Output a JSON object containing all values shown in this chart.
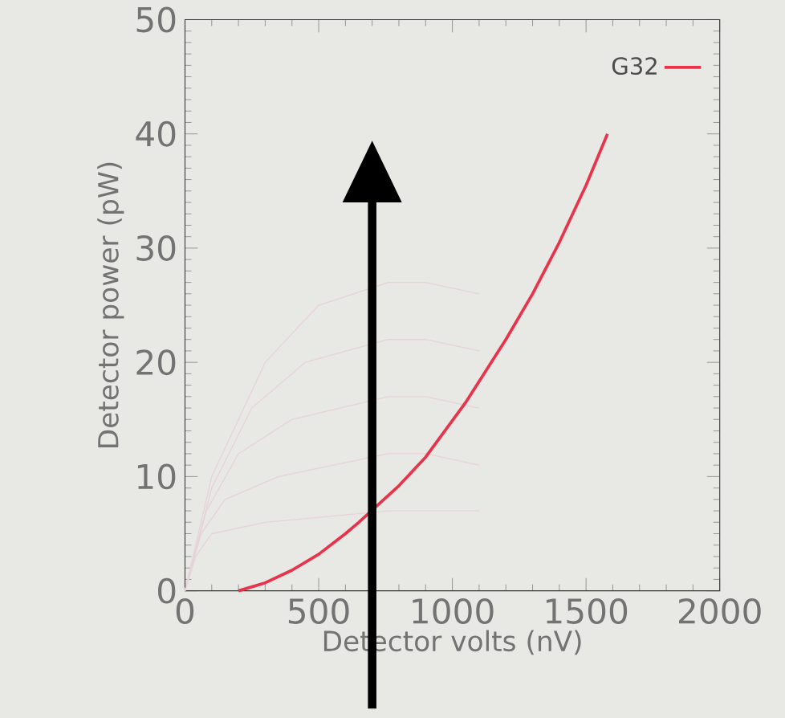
{
  "chart_data": {
    "type": "line",
    "xlabel": "Detector volts (nV)",
    "ylabel": "Detector power (pW)",
    "xlim": [
      0,
      2000
    ],
    "ylim": [
      0,
      50
    ],
    "xticks": [
      0,
      500,
      1000,
      1500,
      2000
    ],
    "yticks": [
      0,
      10,
      20,
      30,
      40,
      50
    ],
    "grid": false,
    "legend": "top right",
    "series": [
      {
        "color": "#e6d3da",
        "x": [
          0,
          100,
          300,
          500,
          760,
          900,
          1100
        ],
        "values": [
          0,
          10,
          20,
          25,
          27,
          27,
          26
        ]
      },
      {
        "color": "#e6d3da",
        "x": [
          0,
          100,
          250,
          450,
          760,
          900,
          1100
        ],
        "values": [
          0,
          9,
          16,
          20,
          22,
          22,
          21
        ]
      },
      {
        "color": "#e6d3da",
        "x": [
          0,
          80,
          200,
          400,
          760,
          900,
          1100
        ],
        "values": [
          0,
          7,
          12,
          15,
          17,
          17,
          16
        ]
      },
      {
        "color": "#e6d3da",
        "x": [
          0,
          60,
          150,
          350,
          760,
          900,
          1100
        ],
        "values": [
          0,
          5,
          8,
          10,
          12,
          12,
          11
        ]
      },
      {
        "color": "#e6d3da",
        "x": [
          0,
          40,
          100,
          300,
          760,
          900,
          1100
        ],
        "values": [
          0,
          3,
          5,
          6,
          7,
          7,
          7
        ]
      },
      {
        "name": "G32",
        "color": "#e8334a",
        "x": [
          200,
          300,
          400,
          500,
          600,
          650,
          800,
          900,
          1050,
          1200,
          1300,
          1400,
          1500,
          1580
        ],
        "values": [
          0,
          0.7,
          1.8,
          3.2,
          5,
          6,
          9.2,
          11.7,
          16.5,
          22,
          26,
          30.5,
          35.5,
          40
        ]
      }
    ]
  }
}
